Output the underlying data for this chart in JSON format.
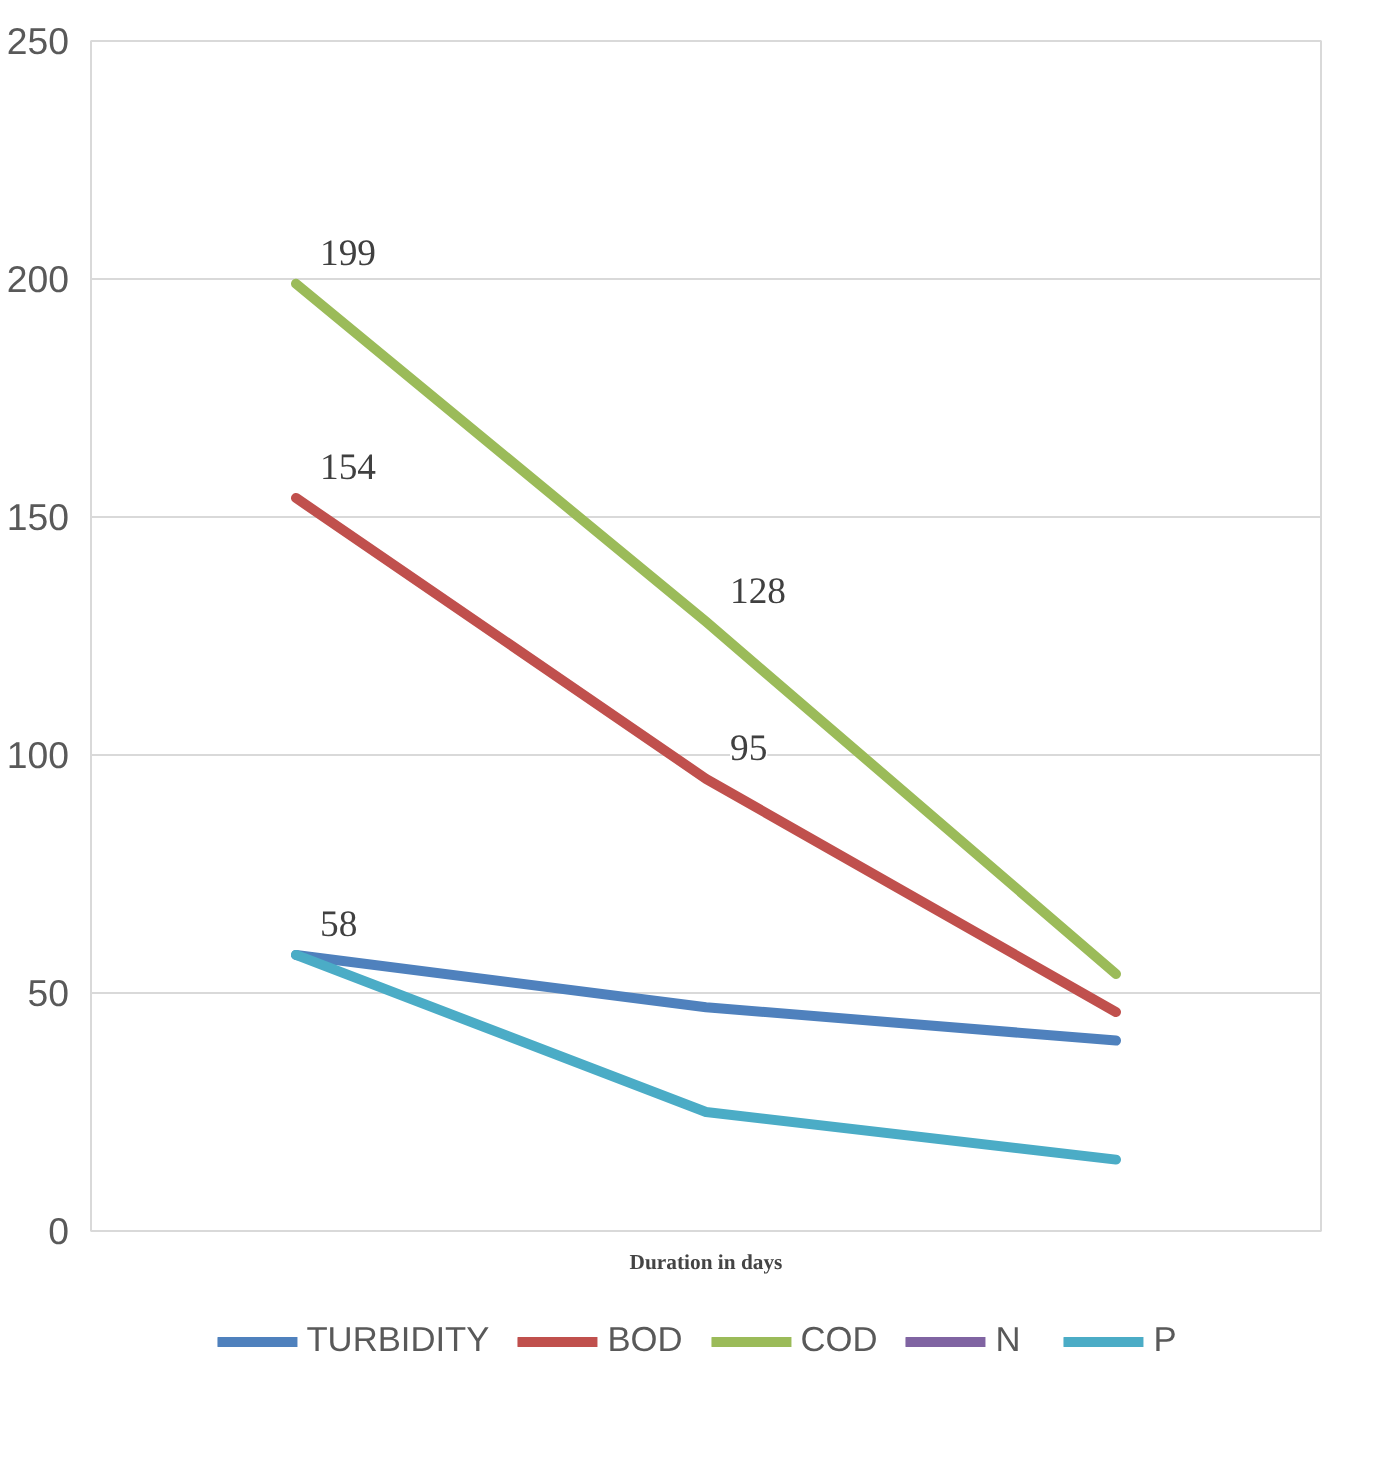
{
  "chart_data": {
    "type": "line",
    "xlabel": "Duration in days",
    "categories": [
      null,
      null,
      null
    ],
    "series": [
      {
        "name": "TURBIDITY",
        "color": "#4f81bd",
        "values": [
          58,
          47,
          40
        ],
        "value_labels": [
          "58",
          null,
          null
        ]
      },
      {
        "name": "BOD",
        "color": "#c0504d",
        "values": [
          154,
          95,
          46
        ],
        "value_labels": [
          "154",
          "95",
          null
        ]
      },
      {
        "name": "COD",
        "color": "#9bbb59",
        "values": [
          199,
          128,
          54
        ],
        "value_labels": [
          "199",
          "128",
          null
        ]
      },
      {
        "name": "N",
        "color": "#8064a2",
        "values": [
          null,
          null,
          null
        ]
      },
      {
        "name": "P",
        "color": "#4bacc6",
        "values": [
          58,
          25,
          15
        ]
      }
    ],
    "ylim": [
      0,
      250
    ],
    "yticks": [
      0,
      50,
      100,
      150,
      200,
      250
    ],
    "grid": "y",
    "legend": "bottom",
    "marker": "none",
    "line_style": "solid"
  }
}
